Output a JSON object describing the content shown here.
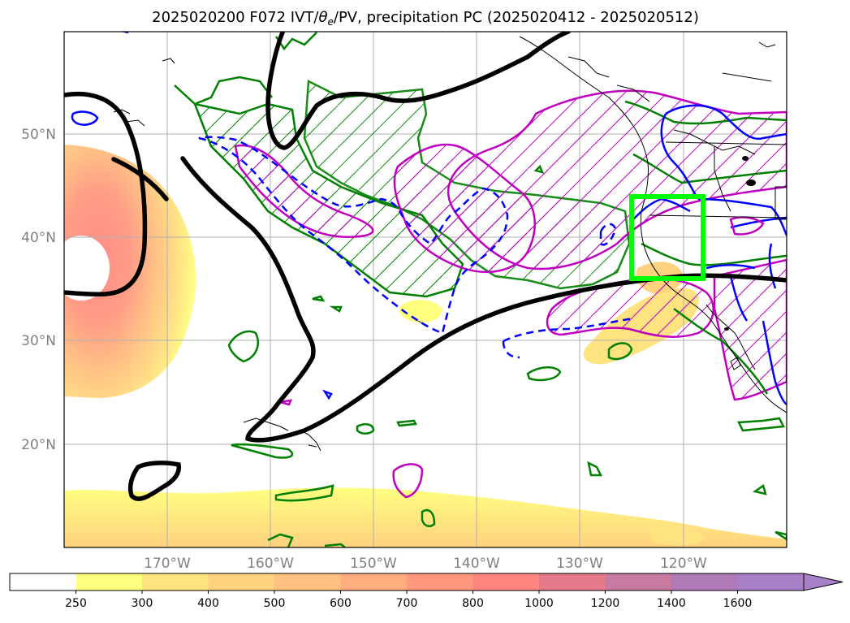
{
  "map": {
    "title_main": "2025020200 F072 IVT/",
    "title_theta": "θ",
    "title_sub": "e",
    "title_rest": "/PV, precipitation PC (2025020412 - 2025020512)",
    "lat_labels": [
      "50°N",
      "40°N",
      "30°N",
      "20°N"
    ],
    "lon_labels": [
      "170°W",
      "160°W",
      "150°W",
      "140°W",
      "130°W",
      "120°W"
    ],
    "lat_values": [
      50,
      40,
      30,
      20
    ],
    "lon_values": [
      -170,
      -160,
      -150,
      -140,
      -130,
      -120
    ],
    "extent": {
      "lon_min": -180,
      "lon_max": -110,
      "lat_min": 10,
      "lat_max": 60
    },
    "grid": true,
    "target_box": {
      "lon_min": -125,
      "lon_max": -118,
      "lat_min": 36,
      "lat_max": 44,
      "color": "#00ff00"
    }
  },
  "colorbar": {
    "labels": [
      "250",
      "300",
      "400",
      "500",
      "600",
      "700",
      "800",
      "1000",
      "1200",
      "1400",
      "1600"
    ],
    "colors": [
      "#ffffff",
      "#ffff80",
      "#ffe380",
      "#ffd280",
      "#ffc080",
      "#ffad7f",
      "#ff987f",
      "#ff8680",
      "#e47a8a",
      "#c97aa0",
      "#b07ab8",
      "#a880c8"
    ],
    "extend": "max"
  },
  "colors": {
    "jet": "#000000",
    "pv_solid": "#0000ff",
    "pv_dashed": "#0000ff",
    "precip": "#008000",
    "theta": "#c000c0",
    "coast": "#000000",
    "grid": "#b0b0b0"
  }
}
